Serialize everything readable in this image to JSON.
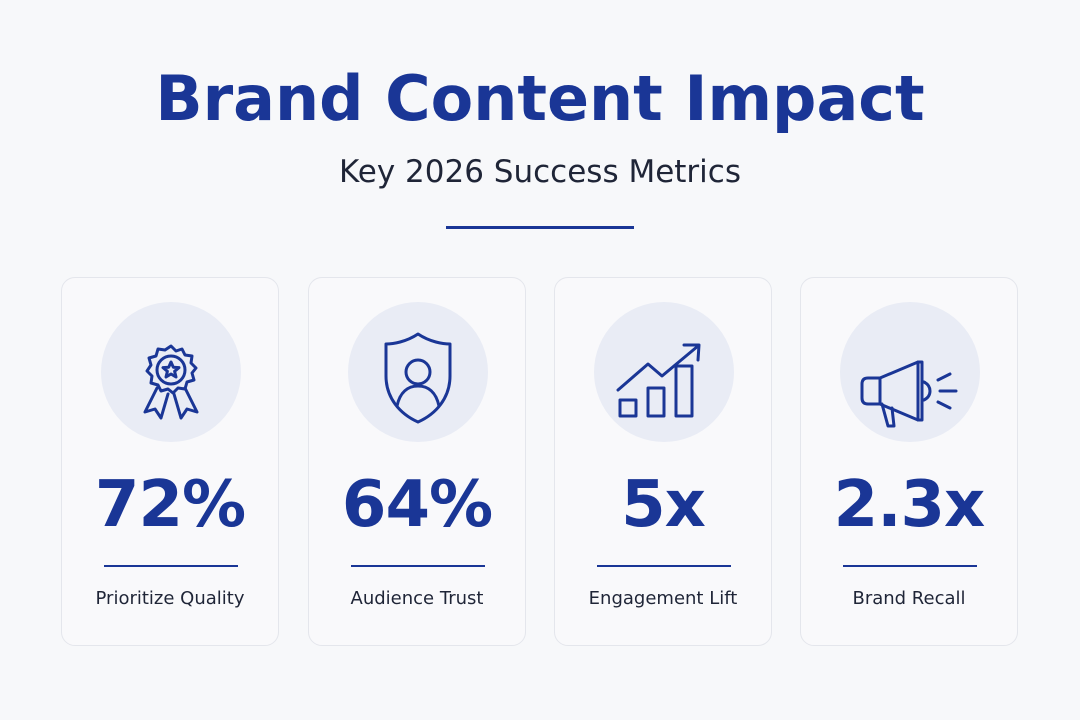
{
  "title": "Brand Content Impact",
  "subtitle": "Key 2026 Success Metrics",
  "colors": {
    "accent": "#1a3696",
    "text": "#1f2537",
    "icon_bg": "#e9ecf5",
    "background": "#f7f8fa"
  },
  "metrics": [
    {
      "value": "72%",
      "label": "Prioritize Quality",
      "icon": "award-ribbon-icon"
    },
    {
      "value": "64%",
      "label": "Audience Trust",
      "icon": "shield-user-icon"
    },
    {
      "value": "5x",
      "label": "Engagement Lift",
      "icon": "growth-chart-icon"
    },
    {
      "value": "2.3x",
      "label": "Brand Recall",
      "icon": "megaphone-icon"
    }
  ]
}
